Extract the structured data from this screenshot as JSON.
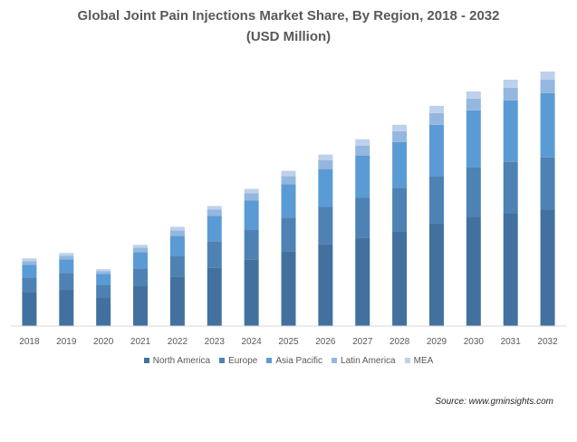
{
  "chart_data": {
    "type": "bar",
    "stacked": true,
    "title": "Global Joint Pain Injections Market Share, By Region, 2018 - 2032",
    "subtitle": "(USD Million)",
    "xlabel": "",
    "ylabel": "",
    "categories": [
      "2018",
      "2019",
      "2020",
      "2021",
      "2022",
      "2023",
      "2024",
      "2025",
      "2026",
      "2027",
      "2028",
      "2029",
      "2030",
      "2031",
      "2032"
    ],
    "ylim": [
      0,
      285
    ],
    "grid": false,
    "legend_position": "bottom",
    "series": [
      {
        "name": "North America",
        "color": "#43719f",
        "values": [
          38,
          41,
          32,
          45,
          55,
          65,
          74,
          83,
          91,
          98,
          105,
          114,
          121,
          125,
          129
        ]
      },
      {
        "name": "Europe",
        "color": "#4e82b4",
        "values": [
          16,
          18,
          14,
          19,
          23,
          29,
          33,
          37,
          41,
          44,
          48,
          52,
          55,
          57,
          58
        ]
      },
      {
        "name": "Asia Pacific",
        "color": "#5b9bd5",
        "values": [
          14,
          15,
          12,
          18,
          22,
          28,
          32,
          37,
          42,
          47,
          51,
          57,
          63,
          68,
          71
        ]
      },
      {
        "name": "Latin America",
        "color": "#94b7df",
        "values": [
          4,
          4,
          3,
          5,
          6,
          7,
          8,
          9,
          10,
          11,
          12,
          13,
          13,
          14,
          15
        ]
      },
      {
        "name": "MEA",
        "color": "#bdd1ec",
        "values": [
          3,
          3,
          2,
          3,
          4,
          4,
          5,
          6,
          6,
          7,
          7,
          8,
          8,
          9,
          9
        ]
      }
    ]
  },
  "source_text": "Source: www.gminsights.com"
}
